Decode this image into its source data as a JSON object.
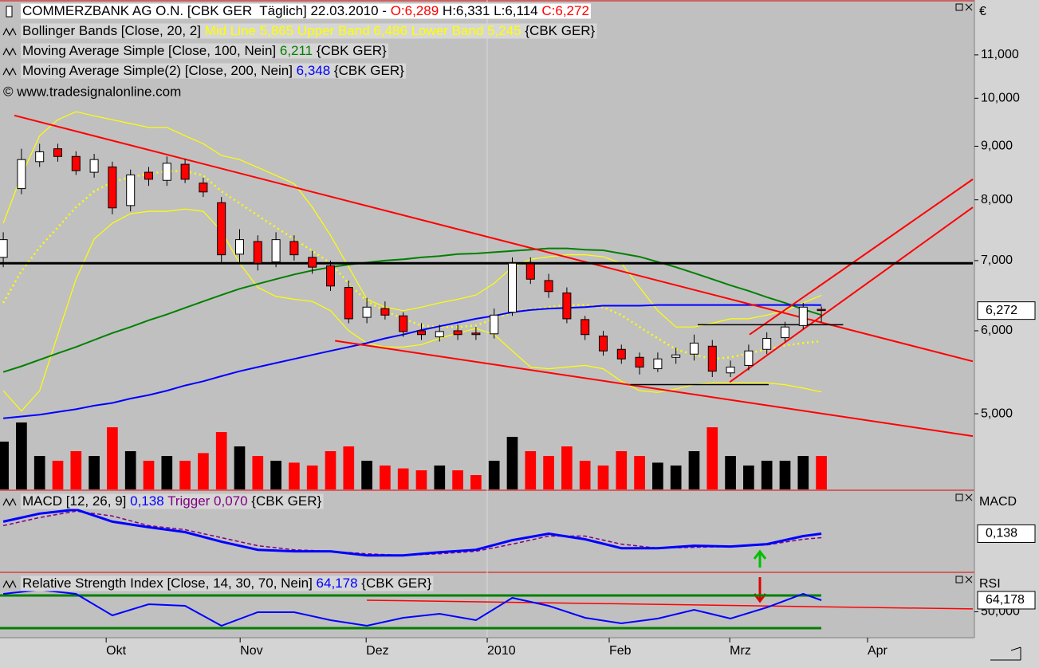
{
  "chart_data": {
    "type": "candlestick",
    "xlim": [
      -0.18,
      53.33
    ],
    "xticks": [
      {
        "value": 5.66,
        "label": "Okt"
      },
      {
        "value": 13.03,
        "label": "Nov"
      },
      {
        "value": 19.96,
        "label": "Dez"
      },
      {
        "value": 26.62,
        "label": "2010"
      },
      {
        "value": 33.33,
        "label": "Feb"
      },
      {
        "value": 39.96,
        "label": "Mrz"
      },
      {
        "value": 47.54,
        "label": "Apr"
      }
    ],
    "legend_lines": [
      [
        {
          "text": "COMMERZBANK AG O.N. [CBK GER  Täglich] 22.03.2010 - ",
          "color": "#000000"
        },
        {
          "text": "O:6,289",
          "color": "#ff0000"
        },
        {
          "text": " H:6,331 L:6,114 ",
          "color": "#000000"
        },
        {
          "text": "C:6,272",
          "color": "#ff0000"
        }
      ],
      [
        {
          "text": "Bollinger Bands [Close, 20, 2] ",
          "color": "#000000"
        },
        {
          "text": "Mid Line 5,865 Upper Band 6,486 Lower Band 5,245",
          "color": "#ffff00"
        },
        {
          "text": " {CBK GER}",
          "color": "#000000"
        }
      ],
      [
        {
          "text": "Moving Average Simple [Close, 100, Nein] ",
          "color": "#000000"
        },
        {
          "text": "6,211",
          "color": "#008000"
        },
        {
          "text": " {CBK GER}",
          "color": "#000000"
        }
      ],
      [
        {
          "text": "Moving Average Simple(2) [Close, 200, Nein] ",
          "color": "#000000"
        },
        {
          "text": "6,348",
          "color": "#0000ff"
        },
        {
          "text": " {CBK GER}",
          "color": "#000000"
        }
      ]
    ],
    "copyright": "© www.tradesignalonline.com",
    "price": {
      "log": true,
      "ylim": [
        4.234,
        12.41
      ],
      "yticks": [
        {
          "value": 11,
          "label": "11,000"
        },
        {
          "value": 10,
          "label": "10,000"
        },
        {
          "value": 9,
          "label": "9,000"
        },
        {
          "value": 8,
          "label": "8,000"
        },
        {
          "value": 7,
          "label": "7,000"
        },
        {
          "value": 6,
          "label": "6,000"
        },
        {
          "value": 5,
          "label": "5,000"
        }
      ],
      "unit_label": "€",
      "last_label": "6,272"
    },
    "candles": {
      "open": [
        7.05,
        8.2,
        8.7,
        8.95,
        8.8,
        8.5,
        8.6,
        7.9,
        8.5,
        8.35,
        8.65,
        8.3,
        7.95,
        7.1,
        7.3,
        6.98,
        7.3,
        7.05,
        6.92,
        6.6,
        6.18,
        6.3,
        6.2,
        6.0,
        5.92,
        6.0,
        5.97,
        5.96,
        6.25,
        6.95,
        6.7,
        6.52,
        6.15,
        5.93,
        5.76,
        5.66,
        5.52,
        5.66,
        5.7,
        5.8,
        5.47,
        5.56,
        5.76,
        5.91,
        6.07,
        6.289
      ],
      "high": [
        7.45,
        8.95,
        9.05,
        9.05,
        8.9,
        8.85,
        8.7,
        8.55,
        8.6,
        8.8,
        8.75,
        8.4,
        8.05,
        7.5,
        7.4,
        7.45,
        7.4,
        7.15,
        7.0,
        6.7,
        6.45,
        6.4,
        6.25,
        6.1,
        6.08,
        6.08,
        6.05,
        6.3,
        7.05,
        7.05,
        6.8,
        6.6,
        6.2,
        6.0,
        5.82,
        5.72,
        5.72,
        5.78,
        5.95,
        5.88,
        5.62,
        5.82,
        5.98,
        6.12,
        6.38,
        6.331
      ],
      "low": [
        6.9,
        8.1,
        8.6,
        8.7,
        8.45,
        8.4,
        7.75,
        7.8,
        8.25,
        8.25,
        8.3,
        8.05,
        6.95,
        6.95,
        6.85,
        6.9,
        7.0,
        6.8,
        6.55,
        6.1,
        6.1,
        6.15,
        5.92,
        5.88,
        5.86,
        5.88,
        5.88,
        5.9,
        6.2,
        6.65,
        6.45,
        6.1,
        5.88,
        5.68,
        5.58,
        5.45,
        5.48,
        5.58,
        5.62,
        5.42,
        5.42,
        5.5,
        5.7,
        5.86,
        6.02,
        6.114
      ],
      "close": [
        7.33,
        8.74,
        8.89,
        8.8,
        8.53,
        8.74,
        7.86,
        8.45,
        8.37,
        8.67,
        8.37,
        8.14,
        7.09,
        7.33,
        6.96,
        7.33,
        7.09,
        6.9,
        6.62,
        6.16,
        6.32,
        6.21,
        5.99,
        5.95,
        5.99,
        5.95,
        5.95,
        6.21,
        6.96,
        6.72,
        6.54,
        6.16,
        5.95,
        5.74,
        5.64,
        5.54,
        5.64,
        5.69,
        5.84,
        5.49,
        5.54,
        5.74,
        5.9,
        6.05,
        6.32,
        6.272
      ],
      "up_color": "#ffffff",
      "down_color": "#ff0000"
    },
    "volume": {
      "ylim": [
        0,
        100
      ],
      "values": [
        50,
        70,
        35,
        30,
        40,
        35,
        65,
        40,
        30,
        35,
        30,
        38,
        60,
        45,
        35,
        30,
        28,
        25,
        40,
        45,
        30,
        25,
        22,
        20,
        25,
        20,
        15,
        30,
        55,
        40,
        35,
        45,
        30,
        25,
        40,
        35,
        28,
        25,
        40,
        65,
        35,
        25,
        30,
        30,
        35,
        35
      ]
    },
    "lines": [
      {
        "color": "#ffff00",
        "style": "solid",
        "values": [
          7.6,
          8.44,
          9.21,
          9.54,
          9.71,
          9.62,
          9.54,
          9.46,
          9.38,
          9.38,
          9.21,
          9.05,
          8.82,
          8.74,
          8.59,
          8.44,
          8.29,
          7.87,
          7.4,
          6.9,
          6.43,
          6.32,
          6.27,
          6.32,
          6.38,
          6.43,
          6.49,
          6.66,
          6.9,
          7.02,
          7.06,
          7.09,
          7.09,
          7.06,
          6.96,
          6.6,
          6.27,
          6.05,
          6.05,
          6.1,
          6.16,
          6.16,
          6.21,
          6.27,
          6.38,
          6.486
        ]
      },
      {
        "color": "#ffff00",
        "style": "dotted",
        "values": [
          6.38,
          6.84,
          7.21,
          7.53,
          7.87,
          8.15,
          8.32,
          8.41,
          8.47,
          8.52,
          8.52,
          8.44,
          8.15,
          7.94,
          7.73,
          7.53,
          7.34,
          7.15,
          6.96,
          6.66,
          6.4,
          6.27,
          6.16,
          6.07,
          6.05,
          6.05,
          6.07,
          6.16,
          6.25,
          6.29,
          6.32,
          6.35,
          6.35,
          6.32,
          6.21,
          6.05,
          5.9,
          5.76,
          5.69,
          5.64,
          5.66,
          5.71,
          5.76,
          5.81,
          5.84,
          5.865
        ]
      },
      {
        "color": "#ffff00",
        "style": "solid",
        "values": [
          5.26,
          5.03,
          5.26,
          5.95,
          6.72,
          7.34,
          7.6,
          7.76,
          7.8,
          7.8,
          7.84,
          7.8,
          7.47,
          6.96,
          6.6,
          6.47,
          6.43,
          6.4,
          6.27,
          6.0,
          5.84,
          5.79,
          5.79,
          5.82,
          5.9,
          5.97,
          6.03,
          5.95,
          5.74,
          5.54,
          5.52,
          5.54,
          5.56,
          5.52,
          5.37,
          5.26,
          5.24,
          5.28,
          5.33,
          5.35,
          5.35,
          5.35,
          5.35,
          5.33,
          5.29,
          5.245
        ]
      },
      {
        "color": "#008000",
        "style": "solid",
        "values": [
          5.48,
          5.55,
          5.63,
          5.71,
          5.79,
          5.88,
          5.97,
          6.05,
          6.14,
          6.22,
          6.31,
          6.4,
          6.49,
          6.58,
          6.65,
          6.72,
          6.79,
          6.85,
          6.9,
          6.94,
          6.97,
          7.0,
          7.02,
          7.05,
          7.07,
          7.1,
          7.11,
          7.13,
          7.15,
          7.17,
          7.19,
          7.19,
          7.17,
          7.16,
          7.11,
          7.06,
          6.98,
          6.9,
          6.81,
          6.72,
          6.63,
          6.55,
          6.46,
          6.38,
          6.29,
          6.211
        ]
      },
      {
        "color": "#0000ff",
        "style": "solid",
        "values": [
          4.95,
          4.97,
          4.99,
          5.02,
          5.05,
          5.09,
          5.12,
          5.17,
          5.21,
          5.26,
          5.32,
          5.37,
          5.43,
          5.49,
          5.54,
          5.59,
          5.64,
          5.69,
          5.74,
          5.79,
          5.84,
          5.9,
          5.95,
          6.01,
          6.06,
          6.11,
          6.16,
          6.2,
          6.25,
          6.28,
          6.3,
          6.31,
          6.32,
          6.34,
          6.34,
          6.34,
          6.35,
          6.35,
          6.35,
          6.35,
          6.35,
          6.35,
          6.35,
          6.35,
          6.35,
          6.348
        ]
      }
    ],
    "drawings": [
      {
        "color": "#ff0000",
        "width": 2,
        "x": [
          0.61,
          53.33
        ],
        "y": [
          9.63,
          5.61
        ]
      },
      {
        "color": "#ff0000",
        "width": 2,
        "x": [
          18.25,
          53.33
        ],
        "y": [
          5.87,
          4.76
        ]
      },
      {
        "color": "#ff0000",
        "width": 2,
        "x": [
          41.05,
          53.33
        ],
        "y": [
          5.95,
          8.37
        ]
      },
      {
        "color": "#ff0000",
        "width": 2,
        "x": [
          39.96,
          53.33
        ],
        "y": [
          5.36,
          7.87
        ]
      },
      {
        "color": "#000000",
        "width": 3,
        "x": [
          -0.18,
          53.33
        ],
        "y": [
          6.96,
          6.96
        ]
      },
      {
        "color": "#000000",
        "width": 1.5,
        "x": [
          38.2,
          46.2
        ],
        "y": [
          6.08,
          6.08
        ]
      },
      {
        "color": "#000000",
        "width": 1.5,
        "x": [
          34.5,
          42.1
        ],
        "y": [
          5.33,
          5.33
        ]
      }
    ],
    "macd": {
      "legend": [
        {
          "text": "MACD [12, 26, 9] ",
          "color": "#000000"
        },
        {
          "text": "0,138",
          "color": "#0000ff"
        },
        {
          "text": " Trigger 0,070",
          "color": "#800080"
        },
        {
          "text": " {CBK GER}",
          "color": "#000000"
        }
      ],
      "axis_label": "MACD",
      "value_label": "0,138",
      "ylim": [
        -0.48,
        0.85
      ],
      "x": [
        0,
        2,
        4,
        6,
        8,
        10,
        12,
        14,
        16,
        18,
        20,
        22,
        24,
        26,
        28,
        30,
        32,
        34,
        36,
        38,
        40,
        42,
        44,
        45
      ],
      "macd": [
        0.343,
        0.48,
        0.549,
        0.343,
        0.248,
        0.165,
        0.001,
        -0.136,
        -0.163,
        -0.163,
        -0.232,
        -0.232,
        -0.177,
        -0.136,
        0.028,
        0.138,
        0.042,
        -0.109,
        -0.109,
        -0.067,
        -0.081,
        -0.04,
        0.097,
        0.138
      ],
      "trigger": [
        0.275,
        0.412,
        0.521,
        0.439,
        0.275,
        0.206,
        0.069,
        -0.068,
        -0.136,
        -0.163,
        -0.204,
        -0.232,
        -0.204,
        -0.163,
        -0.04,
        0.097,
        0.097,
        -0.04,
        -0.109,
        -0.095,
        -0.081,
        -0.054,
        0.042,
        0.07
      ],
      "macd_color": "#0000ff",
      "trigger_color": "#800080"
    },
    "rsi": {
      "legend": [
        {
          "text": "Relative Strength Index [Close, 14, 30, 70, Nein] ",
          "color": "#000000"
        },
        {
          "text": "64,178",
          "color": "#0000ff"
        },
        {
          "text": " {CBK GER}",
          "color": "#000000"
        }
      ],
      "axis_label": "RSI",
      "value_label": "64,178",
      "ylim": [
        18.29,
        96.34
      ],
      "yticks": [
        {
          "value": 50,
          "label": "50,000"
        }
      ],
      "levels": [
        30,
        70
      ],
      "level_color": "#008000",
      "x": [
        0,
        2,
        4,
        6,
        8,
        10,
        12,
        14,
        16,
        18,
        20,
        22,
        24,
        26,
        28,
        30,
        32,
        34,
        36,
        38,
        40,
        42,
        44,
        45
      ],
      "values": [
        71.95,
        76.83,
        71.95,
        45.61,
        59.27,
        57.32,
        32.93,
        49.51,
        49.51,
        39.76,
        32.93,
        42.68,
        47.56,
        39.76,
        67.07,
        57.32,
        42.68,
        35.85,
        41.71,
        52.44,
        41.71,
        55.37,
        71.95,
        64.178
      ],
      "color": "#0000ff",
      "trend": {
        "x": [
          20.0,
          53.33
        ],
        "y": [
          64.2,
          53.5
        ],
        "color": "#ff0000"
      }
    }
  }
}
